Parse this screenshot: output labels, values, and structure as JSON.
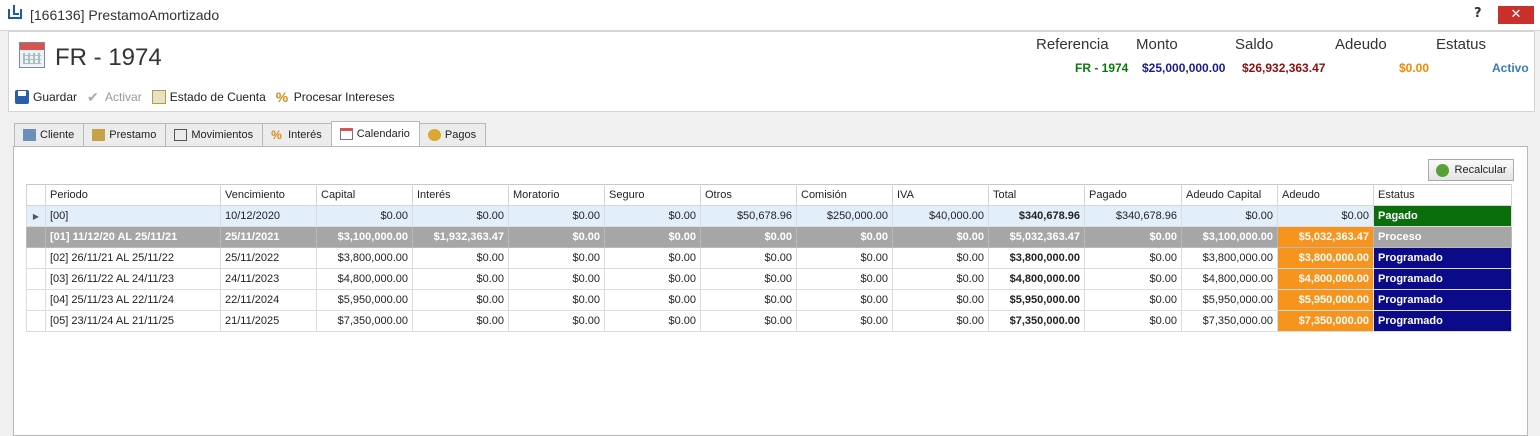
{
  "window": {
    "title": "[166136] PrestamoAmortizado",
    "help": "?",
    "close": "✕"
  },
  "header": {
    "title": "FR - 1974",
    "summary": [
      {
        "label": "Referencia",
        "value": "FR - 1974",
        "color": "#0a7a0a"
      },
      {
        "label": "Monto",
        "value": "$25,000,000.00",
        "color": "#1b1b8f"
      },
      {
        "label": "Saldo",
        "value": "$26,932,363.47",
        "color": "#8b1010"
      },
      {
        "label": "Adeudo",
        "value": "$0.00",
        "color": "#f08a00"
      },
      {
        "label": "Estatus",
        "value": "Activo",
        "color": "#3a7bbf"
      }
    ]
  },
  "toolbar": {
    "guardar": "Guardar",
    "activar": "Activar",
    "estado_cuenta": "Estado de Cuenta",
    "procesar_intereses": "Procesar Intereses"
  },
  "tabs": [
    "Cliente",
    "Prestamo",
    "Movimientos",
    "Interés",
    "Calendario",
    "Pagos"
  ],
  "active_tab": "Calendario",
  "recalcular": "Recalcular",
  "grid": {
    "columns": [
      "Periodo",
      "Vencimiento",
      "Capital",
      "Interés",
      "Moratorio",
      "Seguro",
      "Otros",
      "Comisión",
      "IVA",
      "Total",
      "Pagado",
      "Adeudo Capital",
      "Adeudo",
      "Estatus"
    ],
    "rows": [
      [
        "[00]",
        "10/12/2020",
        "$0.00",
        "$0.00",
        "$0.00",
        "$0.00",
        "$50,678.96",
        "$250,000.00",
        "$40,000.00",
        "$340,678.96",
        "$340,678.96",
        "$0.00",
        "$0.00",
        "Pagado"
      ],
      [
        "[01] 11/12/20 AL 25/11/21",
        "25/11/2021",
        "$3,100,000.00",
        "$1,932,363.47",
        "$0.00",
        "$0.00",
        "$0.00",
        "$0.00",
        "$0.00",
        "$5,032,363.47",
        "$0.00",
        "$3,100,000.00",
        "$5,032,363.47",
        "Proceso"
      ],
      [
        "[02] 26/11/21 AL 25/11/22",
        "25/11/2022",
        "$3,800,000.00",
        "$0.00",
        "$0.00",
        "$0.00",
        "$0.00",
        "$0.00",
        "$0.00",
        "$3,800,000.00",
        "$0.00",
        "$3,800,000.00",
        "$3,800,000.00",
        "Programado"
      ],
      [
        "[03] 26/11/22 AL 24/11/23",
        "24/11/2023",
        "$4,800,000.00",
        "$0.00",
        "$0.00",
        "$0.00",
        "$0.00",
        "$0.00",
        "$0.00",
        "$4,800,000.00",
        "$0.00",
        "$4,800,000.00",
        "$4,800,000.00",
        "Programado"
      ],
      [
        "[04] 25/11/23 AL 22/11/24",
        "22/11/2024",
        "$5,950,000.00",
        "$0.00",
        "$0.00",
        "$0.00",
        "$0.00",
        "$0.00",
        "$0.00",
        "$5,950,000.00",
        "$0.00",
        "$5,950,000.00",
        "$5,950,000.00",
        "Programado"
      ],
      [
        "[05] 23/11/24 AL 21/11/25",
        "21/11/2025",
        "$7,350,000.00",
        "$0.00",
        "$0.00",
        "$0.00",
        "$0.00",
        "$0.00",
        "$0.00",
        "$7,350,000.00",
        "$0.00",
        "$7,350,000.00",
        "$7,350,000.00",
        "Programado"
      ]
    ],
    "status_colors": {
      "Pagado": "#0a6e0a",
      "Proceso": "#a6a6a6",
      "Programado": "#0b0b8a"
    },
    "adeudo_highlight": "#f7941d"
  }
}
